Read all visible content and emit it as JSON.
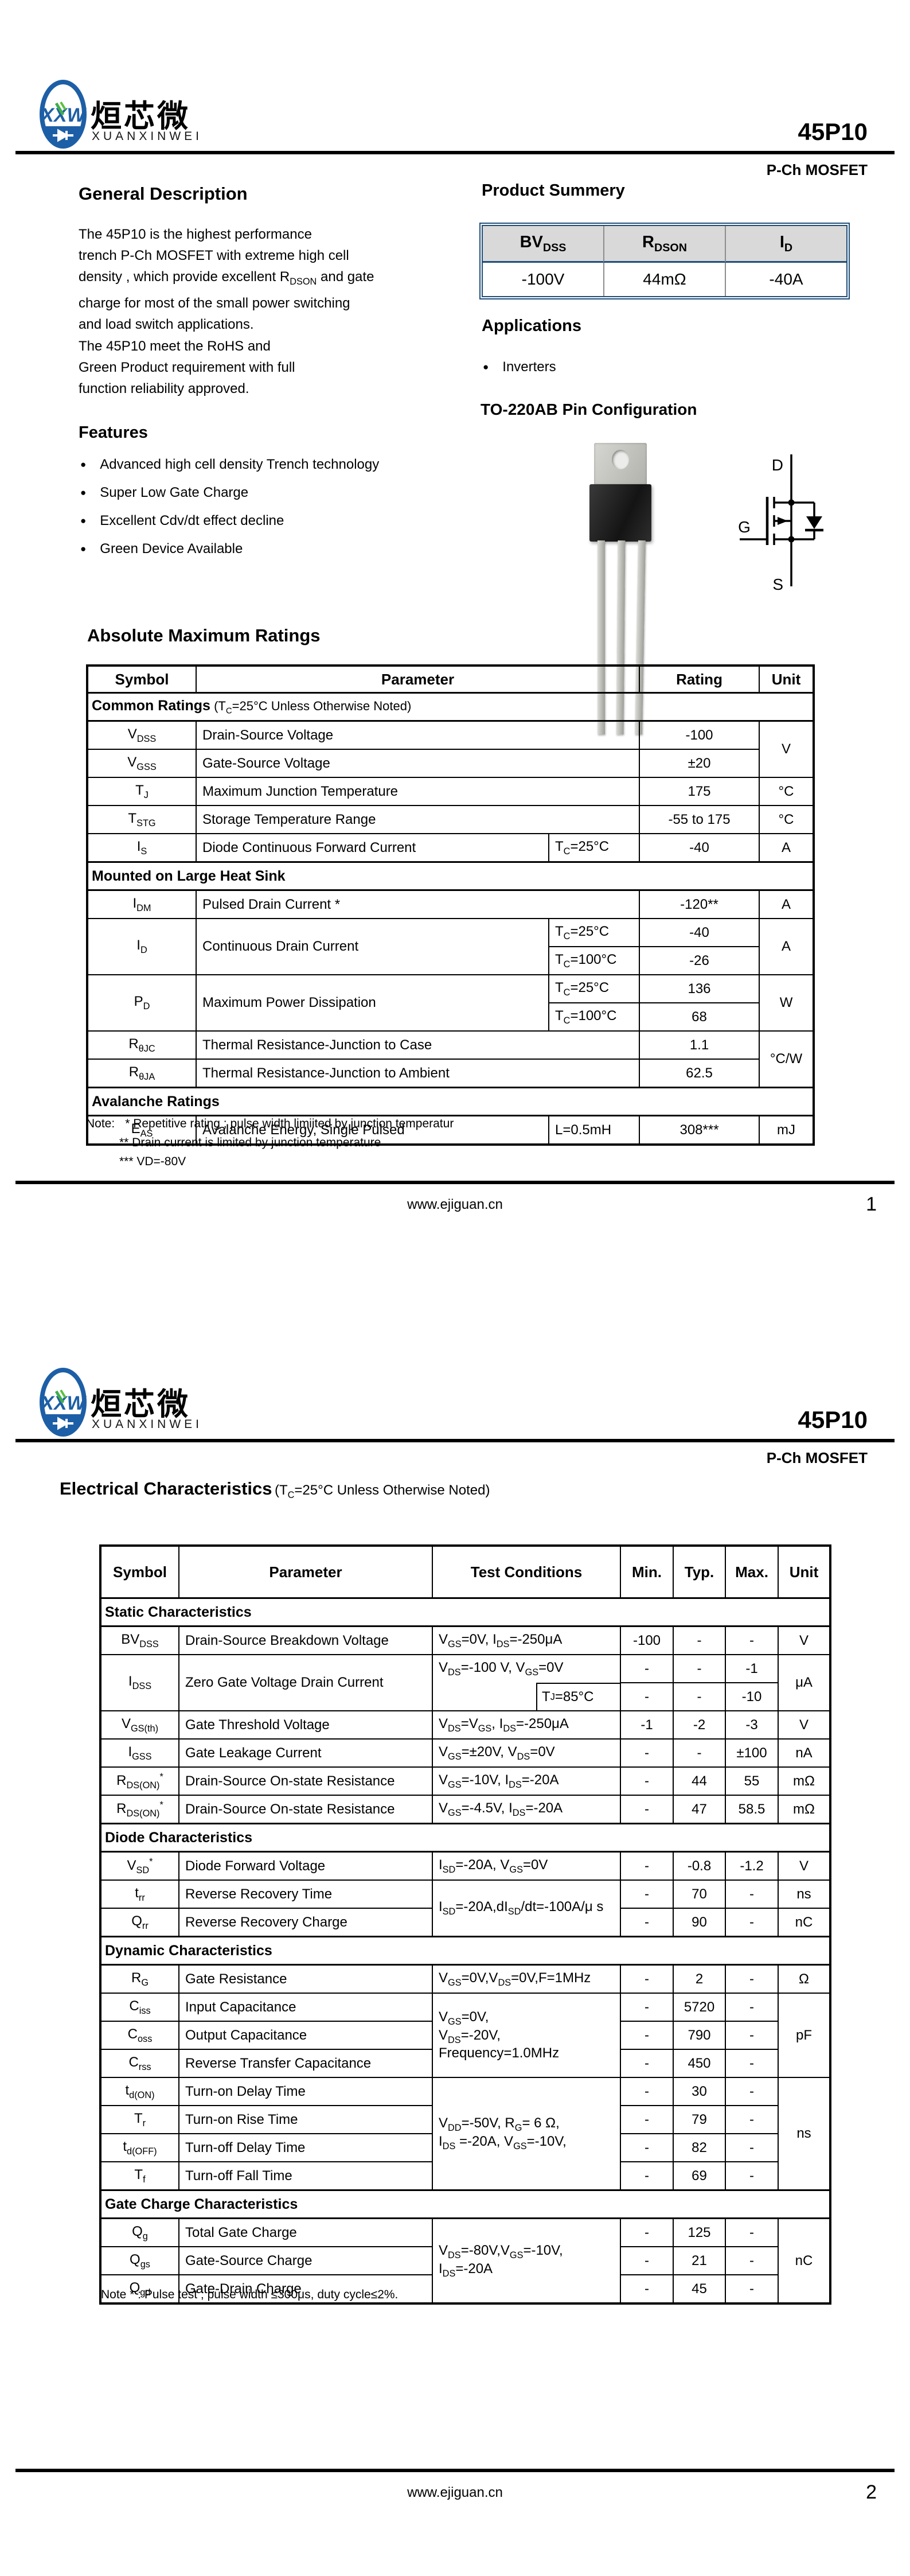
{
  "colors": {
    "accent_navy": "#1f4e79",
    "summary_header_bg": "#d9d9d9",
    "logo_blue": "#1d5fa6",
    "logo_green": "#3fae49"
  },
  "logo": {
    "cn": "烜芯微",
    "en": "XUANXINWEI",
    "monogram": "XXW"
  },
  "header": {
    "part": "45P10",
    "type": "P-Ch MOSFET"
  },
  "footer": {
    "url": "www.ejiguan.cn",
    "page1": "1",
    "page2": "2"
  },
  "page1": {
    "general": {
      "title": "General Description",
      "p1": "The   45P10     is the highest performance\ntrench P-Ch MOSFET with extreme high cell\ndensity ,  which provide excellent R~DSON~ and gate\ncharge  for most of the small power switching\nand load  switch applications.",
      "p2": "The   45P10     meet the RoHS and\nGreen Product  requirement with full\nfunction reliability approved."
    },
    "features": {
      "title": "Features",
      "items": [
        "Advanced high cell density Trench technology",
        "Super Low Gate Charge",
        "Excellent Cdv/dt effect decline",
        "Green Device Available"
      ]
    },
    "product_summary": {
      "title": "Product Summery",
      "headers": [
        "BV~DSS~",
        "R~DSON~",
        "I~D~"
      ],
      "values": [
        "-100V",
        "44mΩ",
        "-40A"
      ]
    },
    "applications": {
      "title": "Applications",
      "items": [
        "Inverters"
      ]
    },
    "pin_config": {
      "title": "TO-220AB  Pin Configuration",
      "drain": "D",
      "gate": "G",
      "source": "S"
    },
    "amr": {
      "title": "Absolute Maximum Ratings",
      "cols": [
        190,
        615,
        158,
        209,
        95
      ],
      "rows": [
        {
          "type": "head",
          "cells": [
            {
              "t": "Symbol"
            },
            {
              "t": "Parameter",
              "cs": 2
            },
            {
              "t": "Rating"
            },
            {
              "t": "Unit"
            }
          ]
        },
        {
          "type": "section",
          "cells": [
            {
              "t": "Common Ratings",
              "t2": " (T~C~=25°C Unless Otherwise Noted)",
              "cs": 5
            }
          ]
        },
        {
          "cells": [
            {
              "t": "V~DSS~"
            },
            {
              "t": "Drain-Source Voltage",
              "cs": 2,
              "cls": "l"
            },
            {
              "t": "-100"
            },
            {
              "t": "V",
              "rs": 2
            }
          ]
        },
        {
          "cells": [
            {
              "t": "V~GSS~"
            },
            {
              "t": "Gate-Source Voltage",
              "cs": 2,
              "cls": "l"
            },
            {
              "t": "±20"
            }
          ]
        },
        {
          "cells": [
            {
              "t": "T~J~"
            },
            {
              "t": "Maximum Junction Temperature",
              "cs": 2,
              "cls": "l"
            },
            {
              "t": "175"
            },
            {
              "t": "°C"
            }
          ]
        },
        {
          "cells": [
            {
              "t": "T~STG~"
            },
            {
              "t": "Storage Temperature Range",
              "cs": 2,
              "cls": "l"
            },
            {
              "t": "-55 to 175"
            },
            {
              "t": "°C"
            }
          ]
        },
        {
          "cells": [
            {
              "t": "I~S~"
            },
            {
              "t": "Diode Continuous Forward Current",
              "cls": "l"
            },
            {
              "t": "T~C~=25°C",
              "cls": "l"
            },
            {
              "t": "-40"
            },
            {
              "t": "A"
            }
          ]
        },
        {
          "type": "section",
          "cells": [
            {
              "t": "Mounted on Large Heat Sink",
              "cs": 5
            }
          ]
        },
        {
          "cells": [
            {
              "t": "I~DM~"
            },
            {
              "t": "Pulsed Drain Current *",
              "cs": 2,
              "cls": "l"
            },
            {
              "t": "-120**"
            },
            {
              "t": "A"
            }
          ]
        },
        {
          "cells": [
            {
              "t": "I~D~",
              "rs": 2
            },
            {
              "t": "Continuous Drain Current",
              "rs": 2,
              "cls": "l"
            },
            {
              "t": "T~C~=25°C",
              "cls": "l"
            },
            {
              "t": "-40"
            },
            {
              "t": "A",
              "rs": 2
            }
          ]
        },
        {
          "cells": [
            {
              "t": "T~C~=100°C",
              "cls": "l"
            },
            {
              "t": "-26"
            }
          ]
        },
        {
          "cells": [
            {
              "t": "P~D~",
              "rs": 2
            },
            {
              "t": "Maximum Power Dissipation",
              "rs": 2,
              "cls": "l"
            },
            {
              "t": "T~C~=25°C",
              "cls": "l"
            },
            {
              "t": "136"
            },
            {
              "t": "W",
              "rs": 2
            }
          ]
        },
        {
          "cells": [
            {
              "t": "T~C~=100°C",
              "cls": "l"
            },
            {
              "t": "68"
            }
          ]
        },
        {
          "cells": [
            {
              "t": "R~θJC~"
            },
            {
              "t": "Thermal Resistance-Junction to Case",
              "cs": 2,
              "cls": "l"
            },
            {
              "t": "1.1"
            },
            {
              "t": "°C/W",
              "rs": 2
            }
          ]
        },
        {
          "cells": [
            {
              "t": "R~θJA~"
            },
            {
              "t": "Thermal Resistance-Junction to Ambient",
              "cs": 2,
              "cls": "l"
            },
            {
              "t": "62.5"
            }
          ]
        },
        {
          "type": "section",
          "cells": [
            {
              "t": "Avalanche Ratings",
              "cs": 5
            }
          ]
        },
        {
          "cells": [
            {
              "t": "E~AS~"
            },
            {
              "t": "Avalanche Energy, Single Pulsed",
              "cls": "l"
            },
            {
              "t": "L=0.5mH",
              "cls": "l"
            },
            {
              "t": "308***"
            },
            {
              "t": "mJ"
            }
          ]
        }
      ]
    },
    "notes": {
      "label": "Note:",
      "line1": "*   Repetitive rating ; pulse width limiited by junction temperatur",
      "line2": "**  Drain current is limited by junction temperature",
      "line3": "*** VD=-80V"
    }
  },
  "page2": {
    "ec": {
      "title": "Electrical Characteristics",
      "subtitle": "(T~C~=25°C Unless Otherwise Noted)",
      "cols": [
        137,
        442,
        183,
        145,
        92,
        91,
        92,
        91
      ],
      "rows": [
        {
          "type": "head",
          "cells": [
            {
              "t": "Symbol"
            },
            {
              "t": "Parameter"
            },
            {
              "t": "Test Conditions",
              "cs": 2
            },
            {
              "t": "Min."
            },
            {
              "t": "Typ."
            },
            {
              "t": "Max."
            },
            {
              "t": "Unit"
            }
          ]
        },
        {
          "type": "section",
          "cells": [
            {
              "t": "Static Characteristics",
              "cs": 8
            }
          ]
        },
        {
          "cells": [
            {
              "t": "BV~DSS~"
            },
            {
              "t": "Drain-Source Breakdown Voltage",
              "cls": "l"
            },
            {
              "t": "V~GS~=0V, I~DS~=-250μA",
              "cs": 2,
              "cls": "l"
            },
            {
              "t": "-100"
            },
            {
              "t": "-"
            },
            {
              "t": "-"
            },
            {
              "t": "V"
            }
          ]
        },
        {
          "cells": [
            {
              "t": "I~DSS~",
              "rs": 2
            },
            {
              "t": "Zero Gate Voltage Drain Current",
              "rs": 2,
              "cls": "l"
            },
            {
              "t": "V~DS~=-100 V, V~GS~=0V",
              "cs": 2,
              "rs": 2,
              "cls": "l condbox",
              "box": "T~J~=85°C"
            },
            {
              "t": "-"
            },
            {
              "t": "-"
            },
            {
              "t": "-1"
            },
            {
              "t": "μA",
              "rs": 2
            }
          ]
        },
        {
          "cells": [
            {
              "t": "-"
            },
            {
              "t": "-"
            },
            {
              "t": "-10"
            }
          ]
        },
        {
          "cells": [
            {
              "t": "V~GS(th)~"
            },
            {
              "t": "Gate Threshold Voltage",
              "cls": "l"
            },
            {
              "t": "V~DS~=V~GS~, I~DS~=-250μA",
              "cs": 2,
              "cls": "l"
            },
            {
              "t": "-1"
            },
            {
              "t": "-2"
            },
            {
              "t": "-3"
            },
            {
              "t": "V"
            }
          ]
        },
        {
          "cells": [
            {
              "t": "I~GSS~"
            },
            {
              "t": "Gate Leakage Current",
              "cls": "l"
            },
            {
              "t": "V~GS~=±20V, V~DS~=0V",
              "cs": 2,
              "cls": "l"
            },
            {
              "t": "-"
            },
            {
              "t": "-"
            },
            {
              "t": "±100"
            },
            {
              "t": "nA"
            }
          ]
        },
        {
          "cells": [
            {
              "t": "R~DS(ON)~^*^"
            },
            {
              "t": "Drain-Source On-state Resistance",
              "cls": "l"
            },
            {
              "t": "V~GS~=-10V, I~DS~=-20A",
              "cs": 2,
              "cls": "l"
            },
            {
              "t": "-"
            },
            {
              "t": "44"
            },
            {
              "t": "55"
            },
            {
              "t": "mΩ"
            }
          ]
        },
        {
          "cells": [
            {
              "t": "R~DS(ON)~^*^"
            },
            {
              "t": "Drain-Source On-state Resistance",
              "cls": "l"
            },
            {
              "t": "V~GS~=-4.5V, I~DS~=-20A",
              "cs": 2,
              "cls": "l"
            },
            {
              "t": "-"
            },
            {
              "t": "47"
            },
            {
              "t": "58.5"
            },
            {
              "t": "mΩ"
            }
          ]
        },
        {
          "type": "section",
          "cells": [
            {
              "t": "Diode Characteristics",
              "cs": 8
            }
          ]
        },
        {
          "cells": [
            {
              "t": "V~SD~^*^"
            },
            {
              "t": "Diode Forward Voltage",
              "cls": "l"
            },
            {
              "t": "I~SD~=-20A, V~GS~=0V",
              "cs": 2,
              "cls": "l"
            },
            {
              "t": "-"
            },
            {
              "t": "-0.8"
            },
            {
              "t": "-1.2"
            },
            {
              "t": "V"
            }
          ]
        },
        {
          "cells": [
            {
              "t": "t~rr~"
            },
            {
              "t": "Reverse Recovery Time",
              "cls": "l"
            },
            {
              "t": "I~SD~=-20A,dI~SD~/dt=-100A/μ s",
              "cs": 2,
              "rs": 2,
              "cls": "l"
            },
            {
              "t": "-"
            },
            {
              "t": "70"
            },
            {
              "t": "-"
            },
            {
              "t": "ns"
            }
          ]
        },
        {
          "cells": [
            {
              "t": "Q~rr~"
            },
            {
              "t": "Reverse Recovery Charge",
              "cls": "l"
            },
            {
              "t": "-"
            },
            {
              "t": "90"
            },
            {
              "t": "-"
            },
            {
              "t": "nC"
            }
          ]
        },
        {
          "type": "section",
          "cells": [
            {
              "t": "Dynamic Characteristics",
              "cs": 8
            }
          ]
        },
        {
          "cells": [
            {
              "t": "R~G~"
            },
            {
              "t": "Gate Resistance",
              "cls": "l"
            },
            {
              "t": "V~GS~=0V,V~DS~=0V,F=1MHz",
              "cs": 2,
              "cls": "l"
            },
            {
              "t": "-"
            },
            {
              "t": "2"
            },
            {
              "t": "-"
            },
            {
              "t": "Ω"
            }
          ]
        },
        {
          "cells": [
            {
              "t": "C~iss~"
            },
            {
              "t": "Input Capacitance",
              "cls": "l"
            },
            {
              "t": "V~GS~=0V,\nV~DS~=-20V,\nFrequency=1.0MHz",
              "cs": 2,
              "rs": 3,
              "cls": "l"
            },
            {
              "t": "-"
            },
            {
              "t": "5720"
            },
            {
              "t": "-"
            },
            {
              "t": "pF",
              "rs": 3
            }
          ]
        },
        {
          "cells": [
            {
              "t": "C~oss~"
            },
            {
              "t": "Output Capacitance",
              "cls": "l"
            },
            {
              "t": "-"
            },
            {
              "t": "790"
            },
            {
              "t": "-"
            }
          ]
        },
        {
          "cells": [
            {
              "t": "C~rss~"
            },
            {
              "t": "Reverse Transfer Capacitance",
              "cls": "l"
            },
            {
              "t": "-"
            },
            {
              "t": "450"
            },
            {
              "t": "-"
            }
          ]
        },
        {
          "cells": [
            {
              "t": "t~d(ON)~"
            },
            {
              "t": "Turn-on Delay Time",
              "cls": "l"
            },
            {
              "t": "V~DD~=-50V, R~G~= 6 Ω,\nI~DS~ =-20A, V~GS~=-10V,",
              "cs": 2,
              "rs": 4,
              "cls": "l"
            },
            {
              "t": "-"
            },
            {
              "t": "30"
            },
            {
              "t": "-"
            },
            {
              "t": "ns",
              "rs": 4
            }
          ]
        },
        {
          "cells": [
            {
              "t": "T~r~"
            },
            {
              "t": "Turn-on Rise Time",
              "cls": "l"
            },
            {
              "t": "-"
            },
            {
              "t": "79"
            },
            {
              "t": "-"
            }
          ]
        },
        {
          "cells": [
            {
              "t": "t~d(OFF)~"
            },
            {
              "t": "Turn-off Delay Time",
              "cls": "l"
            },
            {
              "t": "-"
            },
            {
              "t": "82"
            },
            {
              "t": "-"
            }
          ]
        },
        {
          "cells": [
            {
              "t": "T~f~"
            },
            {
              "t": "Turn-off Fall Time",
              "cls": "l"
            },
            {
              "t": "-"
            },
            {
              "t": "69"
            },
            {
              "t": "-"
            }
          ]
        },
        {
          "type": "section",
          "cells": [
            {
              "t": "Gate Charge Characteristics",
              "cs": 8
            }
          ]
        },
        {
          "cells": [
            {
              "t": "Q~g~"
            },
            {
              "t": "Total Gate Charge",
              "cls": "l"
            },
            {
              "t": "V~DS~=-80V,V~GS~=-10V,\n I~DS~=-20A",
              "cs": 2,
              "rs": 3,
              "cls": "l"
            },
            {
              "t": "-"
            },
            {
              "t": "125"
            },
            {
              "t": "-"
            },
            {
              "t": "nC",
              "rs": 3
            }
          ]
        },
        {
          "cells": [
            {
              "t": "Q~gs~"
            },
            {
              "t": "Gate-Source Charge",
              "cls": "l"
            },
            {
              "t": "-"
            },
            {
              "t": "21"
            },
            {
              "t": "-"
            }
          ]
        },
        {
          "cells": [
            {
              "t": "Q~gd~"
            },
            {
              "t": "Gate-Drain Charge",
              "cls": "l"
            },
            {
              "t": "-"
            },
            {
              "t": "45"
            },
            {
              "t": "-"
            }
          ]
        }
      ]
    },
    "note": "Note * : Pulse test ; pulse width ≤300μs, duty cycle≤2%."
  }
}
